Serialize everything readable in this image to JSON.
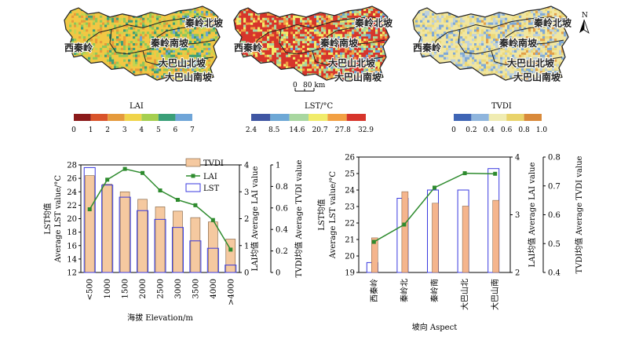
{
  "maps": [
    {
      "legend_title": "LAI",
      "legend_ticks": [
        "0",
        "1",
        "2",
        "3",
        "4",
        "5",
        "6",
        "7"
      ],
      "colors": [
        "#8b1a1a",
        "#d9542b",
        "#e59a3c",
        "#f0d44a",
        "#a5cf4f",
        "#3a9f78",
        "#6fa5d8"
      ],
      "fill_palette": [
        "#f2c744",
        "#e79b3b",
        "#c8d44f",
        "#8fc75a",
        "#3e9f77",
        "#6aa5d4"
      ],
      "regions": [
        "秦岭北坡",
        "西秦岭",
        "秦岭南坡",
        "大巴山北坡",
        "大巴山南坡"
      ]
    },
    {
      "legend_title": "LST/°C",
      "legend_ticks": [
        "2.4",
        "8.5",
        "14.6",
        "20.7",
        "27.8",
        "32.9"
      ],
      "colors": [
        "#3f56a3",
        "#6ea8d6",
        "#a8d7a0",
        "#f1ec6a",
        "#f2a043",
        "#d7352b"
      ],
      "fill_palette": [
        "#d7352b",
        "#f2a043",
        "#f1ec6a",
        "#a8d7a0",
        "#6ea8d6"
      ],
      "regions": [
        "秦岭北坡",
        "西秦岭",
        "秦岭南坡",
        "大巴山北坡",
        "大巴山南坡"
      ],
      "scale_bar": {
        "ticks": [
          "0",
          "80 km"
        ]
      }
    },
    {
      "legend_title": "TVDI",
      "legend_ticks": [
        "0",
        "0.2",
        "0.4",
        "0.6",
        "0.8",
        "1.0"
      ],
      "colors": [
        "#3f65b5",
        "#8fb5dd",
        "#f0ecb2",
        "#e9d36a",
        "#d98a3a"
      ],
      "fill_palette": [
        "#f1e6a0",
        "#ecd97a",
        "#bcd0dd",
        "#7fa9d7",
        "#e2a04a"
      ],
      "regions": [
        "秦岭北坡",
        "西秦岭",
        "秦岭南坡",
        "大巴山北坡",
        "大巴山南坡"
      ],
      "north_label": "N"
    }
  ],
  "chart_data": [
    {
      "type": "bar",
      "categories": [
        "<500",
        "1000",
        "1500",
        "2000",
        "2500",
        "3000",
        "3500",
        "4000",
        ">4000"
      ],
      "xlabel": "海拔 Elevation/m",
      "ylabel_left": [
        "LST均值",
        "Average LST value/°C"
      ],
      "ylabel_lai": "LAI均值 Average LAI value",
      "ylabel_tvdi": "TVDI均值 Average TVDI value",
      "ylim_lst": [
        12,
        28
      ],
      "ylim_lai": [
        0,
        4
      ],
      "ylim_tvdi": [
        0,
        1
      ],
      "yticks_lst": [
        12,
        14,
        16,
        18,
        20,
        22,
        24,
        26,
        28
      ],
      "yticks_lai": [
        0,
        1,
        2,
        3,
        4
      ],
      "yticks_tvdi": [
        0,
        0.2,
        0.4,
        0.6,
        0.8,
        1.0
      ],
      "legend": [
        "TVDI",
        "LAI",
        "LST"
      ],
      "legend_position": "top-right",
      "series": [
        {
          "name": "TVDI",
          "axis": "tvdi",
          "style": "filled bar",
          "color": "#f5c9a0",
          "values": [
            0.9,
            0.82,
            0.75,
            0.68,
            0.61,
            0.57,
            0.51,
            0.47,
            0.31
          ]
        },
        {
          "name": "LST",
          "axis": "lst",
          "style": "outline bar",
          "color": "#3a3adf",
          "values": [
            27.6,
            25.0,
            23.2,
            21.2,
            19.9,
            18.7,
            16.7,
            15.6,
            13.1
          ]
        },
        {
          "name": "LAI",
          "axis": "lai",
          "style": "line+square",
          "color": "#2e8b2e",
          "values": [
            2.35,
            3.45,
            3.85,
            3.7,
            3.05,
            2.7,
            2.5,
            1.95,
            0.85
          ]
        }
      ]
    },
    {
      "type": "bar",
      "categories": [
        "西秦岭",
        "秦岭北",
        "秦岭南",
        "大巴山北",
        "大巴山南"
      ],
      "xlabel": "坡向 Aspect",
      "ylabel_left": [
        "LST均值",
        "Average LST value/°C"
      ],
      "ylabel_lai": "LAI均值 Average LAI value",
      "ylabel_tvdi": "TVDI均值 Average TVDI value",
      "ylim_lst": [
        19,
        26
      ],
      "ylim_lai": [
        2,
        4
      ],
      "ylim_tvdi": [
        0.4,
        0.8
      ],
      "yticks_lst": [
        19,
        20,
        21,
        22,
        23,
        24,
        25,
        26
      ],
      "yticks_lai": [
        2,
        3,
        4
      ],
      "yticks_tvdi": [
        0.4,
        0.5,
        0.6,
        0.7,
        0.8
      ],
      "series": [
        {
          "name": "LST",
          "axis": "lst",
          "style": "outline bar",
          "color": "#3a3adf",
          "values": [
            19.6,
            23.5,
            24.0,
            24.0,
            25.3
          ]
        },
        {
          "name": "TVDI",
          "axis": "tvdi",
          "style": "filled bar",
          "color": "#f5b58d",
          "values": [
            0.52,
            0.68,
            0.64,
            0.63,
            0.65
          ]
        },
        {
          "name": "LAI",
          "axis": "lai",
          "style": "line+square",
          "color": "#2e8b2e",
          "values": [
            2.53,
            2.83,
            3.47,
            3.72,
            3.71
          ]
        }
      ]
    }
  ]
}
